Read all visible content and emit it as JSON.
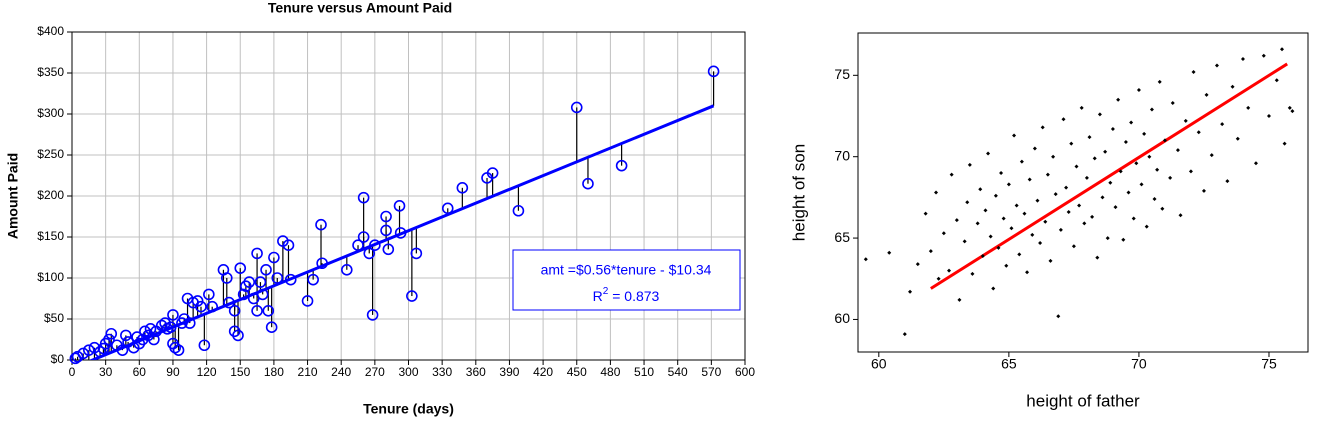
{
  "chart_data": [
    {
      "type": "scatter",
      "title": "Tenure versus Amount Paid",
      "x_label": "Tenure (days)",
      "y_label": "Amount Paid",
      "xlim": [
        0,
        600
      ],
      "ylim": [
        0,
        400
      ],
      "xticks": [
        0,
        30,
        60,
        90,
        120,
        150,
        180,
        210,
        240,
        270,
        300,
        330,
        360,
        390,
        420,
        450,
        480,
        510,
        540,
        570,
        600
      ],
      "yticks": [
        {
          "value": 0,
          "label": "$0"
        },
        {
          "value": 50,
          "label": "$50"
        },
        {
          "value": 100,
          "label": "$100"
        },
        {
          "value": 150,
          "label": "$150"
        },
        {
          "value": 200,
          "label": "$200"
        },
        {
          "value": 250,
          "label": "$250"
        },
        {
          "value": 300,
          "label": "$300"
        },
        {
          "value": 350,
          "label": "$350"
        },
        {
          "value": 400,
          "label": "$400"
        }
      ],
      "grid": true,
      "residuals": true,
      "annotation": {
        "equation": "amt =$0.56*tenure - $10.34",
        "r2_symbol": "R",
        "r2_power": "2",
        "r2_value": " = 0.873"
      },
      "series": [
        {
          "mode": "markers",
          "color": "#0000ff",
          "x": [
            3,
            5,
            10,
            15,
            20,
            25,
            28,
            30,
            33,
            35,
            40,
            45,
            48,
            50,
            55,
            58,
            60,
            63,
            65,
            68,
            70,
            73,
            75,
            80,
            83,
            85,
            88,
            90,
            90,
            92,
            95,
            98,
            100,
            103,
            105,
            108,
            112,
            115,
            118,
            122,
            125,
            135,
            138,
            140,
            145,
            145,
            148,
            150,
            153,
            155,
            158,
            162,
            165,
            165,
            168,
            170,
            173,
            175,
            178,
            180,
            183,
            188,
            193,
            195,
            210,
            215,
            222,
            223,
            245,
            255,
            260,
            260,
            265,
            268,
            270,
            280,
            280,
            282,
            292,
            293,
            303,
            307,
            335,
            348,
            370,
            375,
            398,
            450,
            460,
            490,
            572
          ],
          "values": [
            2,
            4,
            8,
            12,
            15,
            10,
            14,
            20,
            25,
            32,
            18,
            12,
            30,
            22,
            15,
            28,
            20,
            25,
            35,
            30,
            38,
            25,
            35,
            42,
            45,
            38,
            40,
            55,
            20,
            15,
            12,
            45,
            50,
            75,
            45,
            70,
            72,
            65,
            18,
            80,
            65,
            110,
            100,
            70,
            60,
            35,
            30,
            112,
            80,
            90,
            95,
            75,
            130,
            60,
            95,
            80,
            110,
            60,
            40,
            125,
            100,
            145,
            140,
            98,
            72,
            98,
            165,
            118,
            110,
            140,
            198,
            150,
            130,
            55,
            140,
            175,
            158,
            135,
            188,
            155,
            78,
            130,
            185,
            210,
            222,
            228,
            182,
            308,
            215,
            237,
            352
          ]
        },
        {
          "mode": "line",
          "color": "#0000ff",
          "x": [
            5,
            572
          ],
          "values": [
            -7.5,
            310
          ]
        }
      ]
    },
    {
      "type": "scatter",
      "x_label": "height of father",
      "y_label": "height of son",
      "xlim": [
        59.2,
        76.5
      ],
      "ylim": [
        58,
        77.6
      ],
      "xticks": [
        60,
        65,
        70,
        75
      ],
      "yticks": [
        60,
        65,
        70,
        75
      ],
      "grid": false,
      "residuals": false,
      "series": [
        {
          "mode": "markers",
          "color": "#000000",
          "x": [
            59.5,
            60.4,
            61.0,
            61.2,
            61.5,
            61.8,
            62.0,
            62.2,
            62.3,
            62.5,
            62.7,
            62.8,
            63.0,
            63.1,
            63.3,
            63.4,
            63.5,
            63.6,
            63.8,
            63.9,
            64.0,
            64.1,
            64.2,
            64.3,
            64.4,
            64.5,
            64.6,
            64.7,
            64.8,
            64.9,
            65.0,
            65.1,
            65.2,
            65.3,
            65.4,
            65.5,
            65.6,
            65.7,
            65.8,
            65.9,
            66.0,
            66.1,
            66.2,
            66.3,
            66.4,
            66.5,
            66.6,
            66.7,
            66.8,
            66.9,
            67.0,
            67.1,
            67.2,
            67.3,
            67.4,
            67.5,
            67.6,
            67.7,
            67.8,
            67.9,
            68.0,
            68.1,
            68.2,
            68.3,
            68.4,
            68.5,
            68.6,
            68.7,
            68.8,
            68.9,
            69.0,
            69.1,
            69.2,
            69.3,
            69.4,
            69.5,
            69.6,
            69.7,
            69.8,
            69.9,
            70.0,
            70.1,
            70.2,
            70.3,
            70.4,
            70.5,
            70.6,
            70.7,
            70.8,
            70.9,
            71.0,
            71.2,
            71.3,
            71.5,
            71.6,
            71.8,
            72.0,
            72.1,
            72.3,
            72.5,
            72.6,
            72.8,
            73.0,
            73.2,
            73.4,
            73.6,
            73.8,
            74.0,
            74.2,
            74.5,
            74.8,
            75.0,
            75.3,
            75.5,
            75.8,
            75.9,
            75.6
          ],
          "values": [
            63.7,
            64.1,
            59.1,
            61.7,
            63.4,
            66.5,
            64.2,
            67.8,
            62.5,
            65.3,
            63.0,
            68.9,
            66.1,
            61.2,
            64.8,
            67.2,
            69.5,
            62.8,
            65.9,
            68.0,
            63.9,
            66.7,
            70.2,
            65.1,
            61.9,
            67.6,
            64.4,
            69.0,
            66.2,
            63.3,
            68.3,
            65.6,
            71.3,
            67.0,
            64.0,
            69.7,
            66.5,
            62.9,
            68.6,
            65.2,
            70.5,
            67.3,
            64.7,
            71.8,
            66.0,
            68.9,
            63.6,
            70.0,
            67.7,
            60.2,
            65.5,
            72.3,
            68.1,
            66.6,
            70.8,
            64.5,
            69.4,
            67.0,
            73.0,
            65.9,
            68.7,
            71.2,
            66.3,
            69.9,
            63.8,
            72.6,
            67.5,
            70.3,
            65.0,
            68.4,
            71.7,
            66.9,
            73.5,
            69.1,
            64.9,
            70.9,
            67.8,
            72.1,
            66.2,
            69.6,
            74.1,
            68.3,
            71.4,
            65.7,
            70.0,
            72.9,
            67.4,
            69.2,
            74.6,
            66.8,
            71.0,
            68.7,
            73.3,
            70.4,
            66.4,
            72.2,
            69.1,
            75.2,
            71.5,
            67.9,
            73.8,
            70.1,
            75.6,
            72.0,
            68.5,
            74.3,
            71.1,
            76.0,
            73.0,
            69.6,
            76.2,
            72.5,
            74.7,
            76.6,
            73.0,
            72.8,
            70.8
          ]
        },
        {
          "mode": "line",
          "color": "#ff0000",
          "x": [
            62.0,
            75.7
          ],
          "values": [
            61.9,
            75.7
          ]
        }
      ]
    }
  ]
}
